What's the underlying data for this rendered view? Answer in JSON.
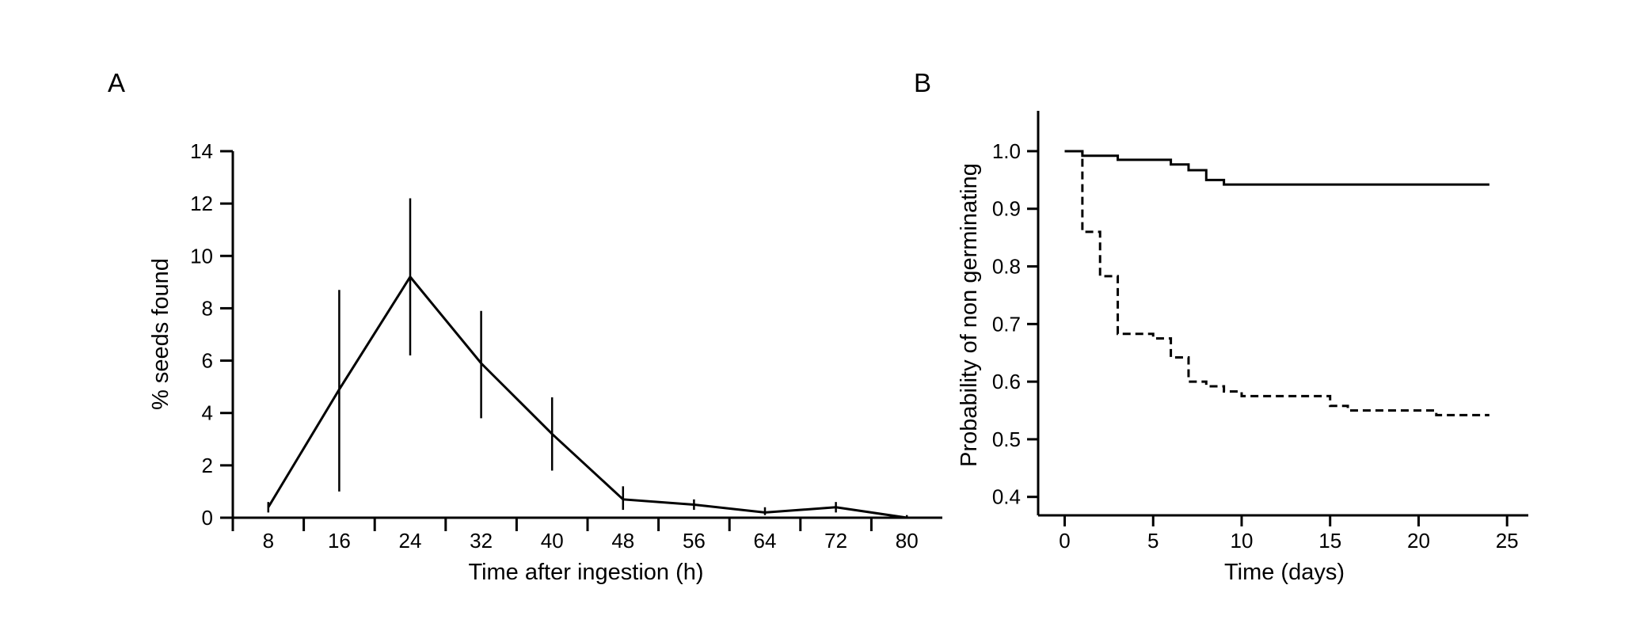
{
  "chart_data": [
    {
      "panel": "A",
      "type": "line",
      "title": "",
      "xlabel": "Time after ingestion (h)",
      "ylabel": "% seeds found",
      "x": [
        8,
        16,
        24,
        32,
        40,
        48,
        56,
        64,
        72,
        80
      ],
      "xticks": [
        "8",
        "16",
        "24",
        "32",
        "40",
        "48",
        "56",
        "64",
        "72",
        "80"
      ],
      "xlim": [
        4,
        84
      ],
      "ylim": [
        0,
        14
      ],
      "yticks": [
        "0",
        "2",
        "4",
        "6",
        "8",
        "10",
        "12",
        "14"
      ],
      "series": [
        {
          "values": [
            0.4,
            4.9,
            9.2,
            5.9,
            3.2,
            0.7,
            0.5,
            0.2,
            0.4,
            0.0
          ],
          "err_low": [
            0.2,
            1.0,
            6.2,
            3.8,
            1.8,
            0.3,
            0.3,
            0.1,
            0.2,
            0.0
          ],
          "err_high": [
            0.6,
            8.7,
            12.2,
            7.9,
            4.6,
            1.2,
            0.7,
            0.4,
            0.6,
            0.1
          ]
        }
      ],
      "grid": false,
      "color": "#000000"
    },
    {
      "panel": "B",
      "type": "line",
      "title": "",
      "xlabel": "Time (days)",
      "ylabel": "Probability of non germinating",
      "xlim": [
        -1.5,
        26.2
      ],
      "ylim": [
        0.368,
        1.07
      ],
      "xticks": [
        "0",
        "5",
        "10",
        "15",
        "20",
        "25"
      ],
      "yticks": [
        "1.0",
        "0.9",
        "0.8",
        "0.7",
        "0.6",
        "0.5",
        "0.4"
      ],
      "series": [
        {
          "style": "solid",
          "x": [
            0,
            1,
            3,
            6,
            7,
            8,
            9,
            24
          ],
          "y": [
            1.0,
            0.992,
            0.985,
            0.977,
            0.967,
            0.95,
            0.942,
            0.942
          ]
        },
        {
          "style": "dashed",
          "x": [
            0,
            1,
            2,
            3,
            5,
            6,
            7,
            8,
            9,
            10,
            15,
            16,
            21,
            24
          ],
          "y": [
            1.0,
            0.86,
            0.783,
            0.683,
            0.675,
            0.642,
            0.6,
            0.592,
            0.583,
            0.575,
            0.558,
            0.55,
            0.542,
            0.542
          ]
        }
      ],
      "grid": false,
      "color": "#000000"
    }
  ]
}
